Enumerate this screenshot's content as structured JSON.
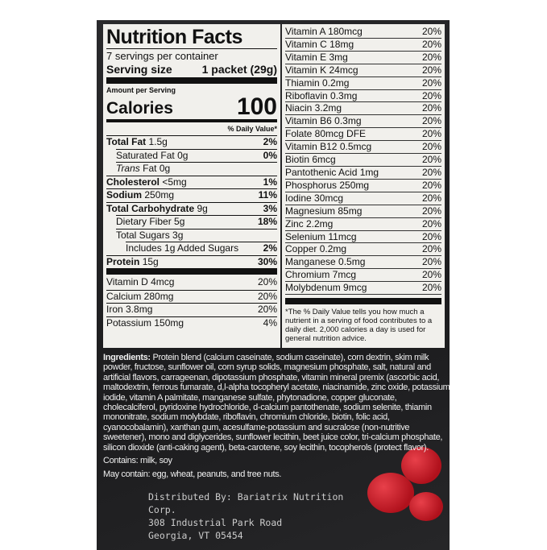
{
  "nutrition_facts": {
    "title": "Nutrition Facts",
    "servings": "7 servings per container",
    "serving_size_label": "Serving size",
    "serving_size_value": "1 packet (29g)",
    "amount_per_serving": "Amount per Serving",
    "calories_label": "Calories",
    "calories_value": "100",
    "dv_header": "% Daily Value*",
    "rows": [
      {
        "name": "Total Fat",
        "amount": "1.5g",
        "dv": "2%",
        "bold": true,
        "indent": 0
      },
      {
        "name": "Saturated Fat",
        "amount": "0g",
        "dv": "0%",
        "bold": false,
        "indent": 1
      },
      {
        "name": "Trans",
        "amount": "Fat 0g",
        "dv": "",
        "bold": false,
        "indent": 1
      },
      {
        "name": "Cholesterol",
        "amount": "<5mg",
        "dv": "1%",
        "bold": true,
        "indent": 0
      },
      {
        "name": "Sodium",
        "amount": "250mg",
        "dv": "11%",
        "bold": true,
        "indent": 0
      },
      {
        "name": "Total Carbohydrate",
        "amount": "9g",
        "dv": "3%",
        "bold": true,
        "indent": 0
      },
      {
        "name": "Dietary Fiber",
        "amount": "5g",
        "dv": "18%",
        "bold": false,
        "indent": 1
      },
      {
        "name": "Total Sugars",
        "amount": "3g",
        "dv": "",
        "bold": false,
        "indent": 1
      },
      {
        "name": "Includes 1g Added Sugars",
        "amount": "",
        "dv": "2%",
        "bold": false,
        "indent": 2
      },
      {
        "name": "Protein",
        "amount": "15g",
        "dv": "30%",
        "bold": true,
        "indent": 0
      }
    ],
    "vitamins_left": [
      {
        "name": "Vitamin D 4mcg",
        "dv": "20%"
      },
      {
        "name": "Calcium 280mg",
        "dv": "20%"
      },
      {
        "name": "Iron 3.8mg",
        "dv": "20%"
      },
      {
        "name": "Potassium 150mg",
        "dv": "4%"
      }
    ],
    "vitamins_right": [
      {
        "name": "Vitamin A 180mcg",
        "dv": "20%"
      },
      {
        "name": "Vitamin C 18mg",
        "dv": "20%"
      },
      {
        "name": "Vitamin E 3mg",
        "dv": "20%"
      },
      {
        "name": "Vitamin K 24mcg",
        "dv": "20%"
      },
      {
        "name": "Thiamin 0.2mg",
        "dv": "20%"
      },
      {
        "name": "Riboflavin 0.3mg",
        "dv": "20%"
      },
      {
        "name": "Niacin 3.2mg",
        "dv": "20%"
      },
      {
        "name": "Vitamin B6 0.3mg",
        "dv": "20%"
      },
      {
        "name": "Folate 80mcg DFE",
        "dv": "20%"
      },
      {
        "name": "Vitamin B12 0.5mcg",
        "dv": "20%"
      },
      {
        "name": "Biotin 6mcg",
        "dv": "20%"
      },
      {
        "name": "Pantothenic Acid 1mg",
        "dv": "20%"
      },
      {
        "name": "Phosphorus 250mg",
        "dv": "20%"
      },
      {
        "name": "Iodine 30mcg",
        "dv": "20%"
      },
      {
        "name": "Magnesium 85mg",
        "dv": "20%"
      },
      {
        "name": "Zinc 2.2mg",
        "dv": "20%"
      },
      {
        "name": "Selenium 11mcg",
        "dv": "20%"
      },
      {
        "name": "Copper 0.2mg",
        "dv": "20%"
      },
      {
        "name": "Manganese 0.5mg",
        "dv": "20%"
      },
      {
        "name": "Chromium 7mcg",
        "dv": "20%"
      },
      {
        "name": "Molybdenum 9mcg",
        "dv": "20%"
      }
    ],
    "footnote": "*The % Daily Value tells you how much a nutrient in a serving of food contributes to a daily diet. 2,000 calories a day is used for general nutrition advice."
  },
  "ingredients": {
    "label": "Ingredients:",
    "text": "Protein blend (calcium caseinate, sodium caseinate), corn dextrin, skim milk powder, fructose, sunflower oil, corn syrup solids, magnesium phosphate, salt, natural and artificial flavors, carrageenan, dipotassium phosphate, vitamin mineral premix (ascorbic acid, maltodextrin, ferrous fumarate, d,l-alpha tocopheryl acetate, niacinamide, zinc oxide, potassium iodide, vitamin A palmitate, manganese sulfate, phytonadione, copper gluconate, cholecalciferol, pyridoxine hydrochloride, d-calcium pantothenate, sodium selenite, thiamin mononitrate, sodium molybdate, riboflavin, chromium chloride, biotin, folic acid, cyanocobalamin), xanthan gum, acesulfame-potassium and sucralose (non-nutritive sweetener), mono and diglycerides, sunflower lecithin, beet juice color, tri-calcium phosphate, silicon dioxide (anti-caking agent), beta-carotene, soy lecithin, tocopherols (protect flavor).",
    "contains": "Contains: milk, soy",
    "may_contain": "May contain: egg, wheat, peanuts, and tree nuts."
  },
  "distributor": {
    "line1": "Distributed By: Bariatrix Nutrition Corp.",
    "line2": "308 Industrial Park Road",
    "line3": "Georgia, VT 05454"
  },
  "colors": {
    "background": "#1f1f21",
    "label": "#f1f0ec",
    "strawberry": "#c0141f"
  }
}
